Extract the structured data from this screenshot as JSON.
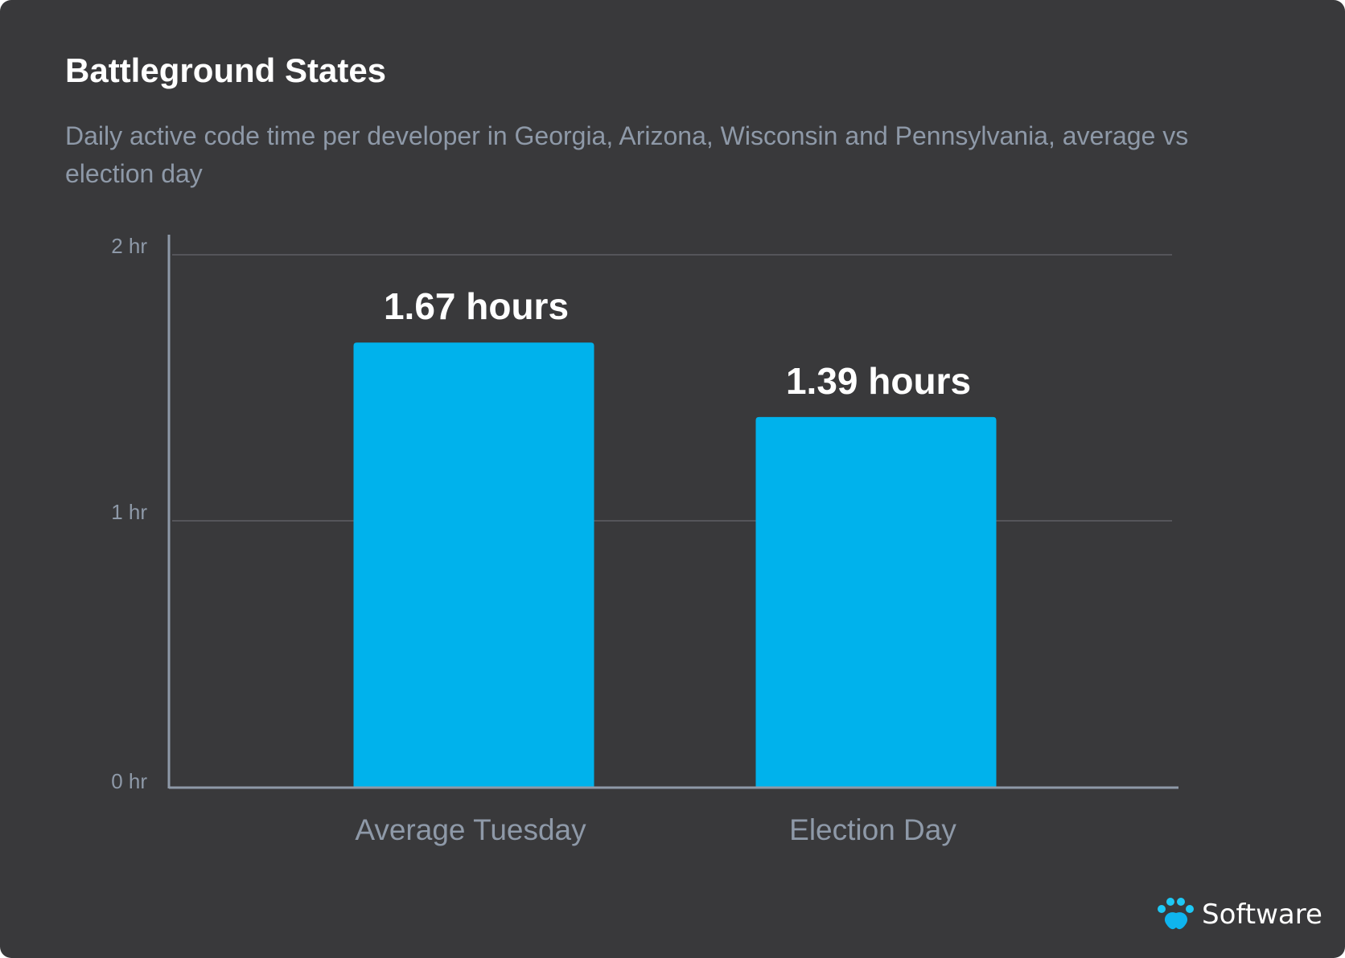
{
  "chart_data": {
    "type": "bar",
    "title": "Battleground States",
    "subtitle": "Daily active code time per developer in Georgia, Arizona, Wisconsin and Pennsylvania, average vs election day",
    "categories": [
      "Average Tuesday",
      "Election Day"
    ],
    "values": [
      1.67,
      1.39
    ],
    "data_labels": [
      "1.67 hours",
      "1.39 hours"
    ],
    "ylim": [
      0,
      2
    ],
    "yticks": [
      0,
      1,
      2
    ],
    "ytick_labels": [
      "0 hr",
      "1 hr",
      "2 hr"
    ],
    "grid": true,
    "legend": "none",
    "colors": {
      "bar": "#00b2ec",
      "background": "#39393b",
      "axis": "#8e99a8",
      "grid": "#55555a"
    }
  },
  "brand": {
    "name": "Software",
    "icon": "paw-icon"
  }
}
